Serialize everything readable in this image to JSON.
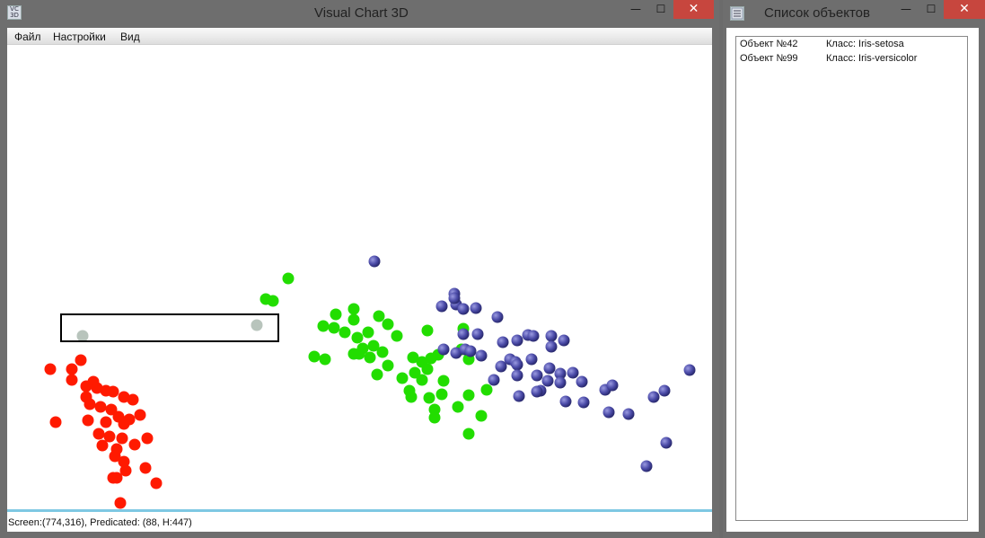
{
  "main_window": {
    "title": "Visual Chart 3D",
    "icon": "vc-app-icon",
    "icon_text": "VC 3D",
    "controls": {
      "minimize": "—",
      "maximize": "☐",
      "close": "✕"
    }
  },
  "menu": {
    "items": [
      {
        "label": "Файл"
      },
      {
        "label": "Настройки"
      },
      {
        "label": "Вид"
      }
    ]
  },
  "status": {
    "text": "Screen:(774,316), Predicated: (88, H:447)"
  },
  "list_window": {
    "title": "Список объектов",
    "icon": "list-app-icon",
    "controls": {
      "minimize": "—",
      "maximize": "☐",
      "close": "✕"
    },
    "rows": [
      {
        "object": "Объект №42",
        "class": "Класс: Iris-setosa"
      },
      {
        "object": "Объект №99",
        "class": "Класс: Iris-versicolor"
      }
    ]
  },
  "chart_data": {
    "type": "scatter",
    "title": "",
    "xlabel": "",
    "ylabel": "",
    "grid": false,
    "legend": "none",
    "series": [
      {
        "name": "",
        "color": "#ff1a00",
        "points": [
          [
            48,
            361
          ],
          [
            72,
            361
          ],
          [
            82,
            351
          ],
          [
            72,
            373
          ],
          [
            96,
            375
          ],
          [
            88,
            380
          ],
          [
            100,
            382
          ],
          [
            110,
            385
          ],
          [
            118,
            386
          ],
          [
            130,
            392
          ],
          [
            140,
            395
          ],
          [
            88,
            392
          ],
          [
            92,
            400
          ],
          [
            104,
            403
          ],
          [
            116,
            406
          ],
          [
            124,
            414
          ],
          [
            136,
            417
          ],
          [
            148,
            412
          ],
          [
            54,
            420
          ],
          [
            90,
            418
          ],
          [
            110,
            420
          ],
          [
            130,
            422
          ],
          [
            102,
            433
          ],
          [
            114,
            436
          ],
          [
            128,
            438
          ],
          [
            156,
            438
          ],
          [
            106,
            446
          ],
          [
            122,
            450
          ],
          [
            142,
            445
          ],
          [
            120,
            458
          ],
          [
            130,
            464
          ],
          [
            154,
            471
          ],
          [
            132,
            474
          ],
          [
            122,
            482
          ],
          [
            166,
            488
          ],
          [
            118,
            482
          ],
          [
            126,
            510
          ],
          [
            126,
            525
          ],
          [
            150,
            529
          ]
        ]
      },
      {
        "name": "",
        "color": "#22dd00",
        "points": [
          [
            313,
            260
          ],
          [
            288,
            283
          ],
          [
            296,
            285
          ],
          [
            386,
            294
          ],
          [
            366,
            300
          ],
          [
            352,
            313
          ],
          [
            364,
            315
          ],
          [
            386,
            306
          ],
          [
            414,
            302
          ],
          [
            424,
            311
          ],
          [
            376,
            320
          ],
          [
            390,
            326
          ],
          [
            402,
            320
          ],
          [
            434,
            324
          ],
          [
            468,
            318
          ],
          [
            508,
            316
          ],
          [
            396,
            338
          ],
          [
            408,
            335
          ],
          [
            418,
            342
          ],
          [
            392,
            344
          ],
          [
            404,
            348
          ],
          [
            386,
            344
          ],
          [
            342,
            347
          ],
          [
            354,
            350
          ],
          [
            452,
            348
          ],
          [
            462,
            353
          ],
          [
            480,
            345
          ],
          [
            472,
            349
          ],
          [
            506,
            339
          ],
          [
            514,
            350
          ],
          [
            424,
            357
          ],
          [
            454,
            365
          ],
          [
            468,
            361
          ],
          [
            412,
            367
          ],
          [
            440,
            371
          ],
          [
            462,
            373
          ],
          [
            486,
            374
          ],
          [
            448,
            385
          ],
          [
            470,
            393
          ],
          [
            484,
            389
          ],
          [
            514,
            390
          ],
          [
            534,
            384
          ],
          [
            450,
            392
          ],
          [
            476,
            406
          ],
          [
            502,
            403
          ],
          [
            476,
            415
          ],
          [
            528,
            413
          ],
          [
            514,
            433
          ]
        ]
      },
      {
        "name": "",
        "color": "#4b4ba8",
        "points": [
          [
            409,
            241
          ],
          [
            498,
            277
          ],
          [
            484,
            291
          ],
          [
            500,
            289
          ],
          [
            508,
            294
          ],
          [
            522,
            293
          ],
          [
            546,
            303
          ],
          [
            508,
            322
          ],
          [
            524,
            322
          ],
          [
            552,
            331
          ],
          [
            568,
            329
          ],
          [
            580,
            323
          ],
          [
            586,
            324
          ],
          [
            606,
            324
          ],
          [
            620,
            329
          ],
          [
            606,
            336
          ],
          [
            486,
            339
          ],
          [
            500,
            343
          ],
          [
            510,
            339
          ],
          [
            516,
            341
          ],
          [
            528,
            346
          ],
          [
            560,
            350
          ],
          [
            584,
            350
          ],
          [
            566,
            353
          ],
          [
            550,
            358
          ],
          [
            568,
            356
          ],
          [
            542,
            373
          ],
          [
            568,
            368
          ],
          [
            590,
            368
          ],
          [
            604,
            360
          ],
          [
            616,
            366
          ],
          [
            630,
            365
          ],
          [
            602,
            374
          ],
          [
            594,
            385
          ],
          [
            616,
            376
          ],
          [
            640,
            375
          ],
          [
            590,
            386
          ],
          [
            570,
            391
          ],
          [
            666,
            384
          ],
          [
            674,
            379
          ],
          [
            622,
            397
          ],
          [
            642,
            398
          ],
          [
            670,
            409
          ],
          [
            692,
            411
          ],
          [
            720,
            392
          ],
          [
            732,
            385
          ],
          [
            760,
            362
          ],
          [
            734,
            443
          ],
          [
            712,
            469
          ],
          [
            498,
            282
          ]
        ]
      },
      {
        "name": "",
        "color": "#b8c4bc",
        "points": [
          [
            84,
            324
          ],
          [
            278,
            312
          ]
        ]
      }
    ]
  }
}
